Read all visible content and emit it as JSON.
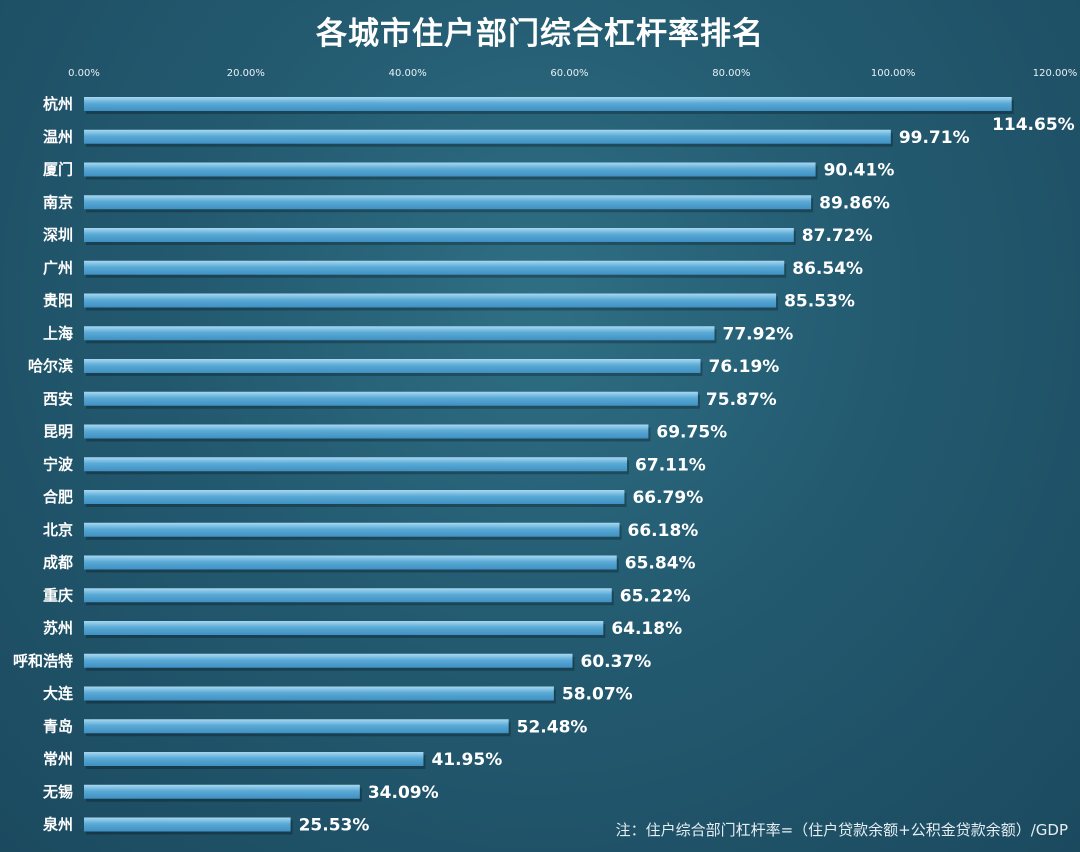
{
  "chart_data": {
    "type": "bar",
    "orientation": "horizontal",
    "title": "各城市住户部门综合杠杆率排名",
    "categories": [
      "杭州",
      "温州",
      "厦门",
      "南京",
      "深圳",
      "广州",
      "贵阳",
      "上海",
      "哈尔滨",
      "西安",
      "昆明",
      "宁波",
      "合肥",
      "北京",
      "成都",
      "重庆",
      "苏州",
      "呼和浩特",
      "大连",
      "青岛",
      "常州",
      "无锡",
      "泉州"
    ],
    "values": [
      114.65,
      99.71,
      90.41,
      89.86,
      87.72,
      86.54,
      85.53,
      77.92,
      76.19,
      75.87,
      69.75,
      67.11,
      66.79,
      66.18,
      65.84,
      65.22,
      64.18,
      60.37,
      58.07,
      52.48,
      41.95,
      34.09,
      25.53
    ],
    "value_labels": [
      "114.65%",
      "99.71%",
      "90.41%",
      "89.86%",
      "87.72%",
      "86.54%",
      "85.53%",
      "77.92%",
      "76.19%",
      "75.87%",
      "69.75%",
      "67.11%",
      "66.79%",
      "66.18%",
      "65.84%",
      "65.22%",
      "64.18%",
      "60.37%",
      "58.07%",
      "52.48%",
      "41.95%",
      "34.09%",
      "25.53%"
    ],
    "xlim": [
      0,
      120
    ],
    "x_ticks": [
      "0.00%",
      "20.00%",
      "40.00%",
      "60.00%",
      "80.00%",
      "100.00%",
      "120.00%"
    ],
    "x_axis_position": "top",
    "grid": false,
    "legend": "none",
    "bar_color": "#5aaad6",
    "footnote": "注：住户综合部门杠杆率=（住户贷款余额+公积金贷款余额）/GDP"
  },
  "colors": {
    "background": "#235a70",
    "bar_top": "#a9d8f2",
    "bar_bottom": "#3f8fc2",
    "text": "#ffffff"
  }
}
